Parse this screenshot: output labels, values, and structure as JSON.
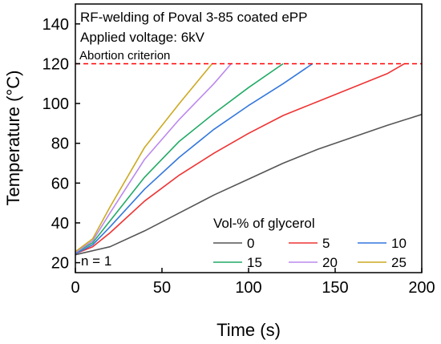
{
  "chart_data": {
    "type": "line",
    "title": "RF-welding of Poval 3-85 coated ePP",
    "subtitle": "Applied voltage: 6kV",
    "xlabel": "Time (s)",
    "ylabel": "Temperature (°C)",
    "xlim": [
      0,
      200
    ],
    "ylim": [
      15,
      150
    ],
    "xticks": [
      0,
      50,
      100,
      150,
      200
    ],
    "yticks": [
      20,
      40,
      60,
      80,
      100,
      120,
      140
    ],
    "grid": false,
    "criterion": {
      "label": "Abortion criterion",
      "y": 120,
      "color": "#ff0000"
    },
    "note": "n = 1",
    "legend": {
      "title": "Vol-% of glycerol",
      "placement": "bottom-right"
    },
    "series": [
      {
        "name": "0",
        "color": "#555555",
        "x": [
          0,
          20,
          40,
          60,
          80,
          100,
          120,
          140,
          160,
          180,
          200
        ],
        "y": [
          24,
          28,
          36,
          45,
          54,
          62,
          70,
          77,
          83,
          89,
          94.5
        ]
      },
      {
        "name": "5",
        "color": "#ee3333",
        "x": [
          0,
          10,
          20,
          40,
          60,
          80,
          100,
          120,
          140,
          160,
          180,
          190
        ],
        "y": [
          24.5,
          28,
          35,
          51,
          64,
          75,
          85,
          94,
          101,
          108,
          115,
          120
        ]
      },
      {
        "name": "10",
        "color": "#3377dd",
        "x": [
          0,
          10,
          20,
          40,
          60,
          80,
          100,
          120,
          137
        ],
        "y": [
          24.5,
          29,
          38,
          57,
          73,
          87,
          99,
          110,
          120
        ]
      },
      {
        "name": "15",
        "color": "#22aa66",
        "x": [
          0,
          10,
          20,
          40,
          60,
          80,
          100,
          120
        ],
        "y": [
          25,
          30,
          41,
          63,
          81,
          95,
          108,
          120
        ]
      },
      {
        "name": "20",
        "color": "#bb88ee",
        "x": [
          0,
          10,
          20,
          40,
          60,
          80,
          90
        ],
        "y": [
          25,
          31,
          45,
          72,
          92,
          110,
          120
        ]
      },
      {
        "name": "25",
        "color": "#ccaa22",
        "x": [
          0,
          10,
          20,
          40,
          60,
          79
        ],
        "y": [
          25.5,
          32,
          48,
          78,
          100,
          120
        ]
      }
    ]
  }
}
